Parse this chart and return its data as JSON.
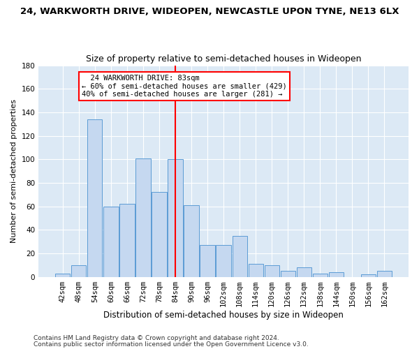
{
  "title": "24, WARKWORTH DRIVE, WIDEOPEN, NEWCASTLE UPON TYNE, NE13 6LX",
  "subtitle": "Size of property relative to semi-detached houses in Wideopen",
  "xlabel": "Distribution of semi-detached houses by size in Wideopen",
  "ylabel": "Number of semi-detached properties",
  "footer1": "Contains HM Land Registry data © Crown copyright and database right 2024.",
  "footer2": "Contains public sector information licensed under the Open Government Licence v3.0.",
  "bins": [
    "42sqm",
    "48sqm",
    "54sqm",
    "60sqm",
    "66sqm",
    "72sqm",
    "78sqm",
    "84sqm",
    "90sqm",
    "96sqm",
    "102sqm",
    "108sqm",
    "114sqm",
    "120sqm",
    "126sqm",
    "132sqm",
    "138sqm",
    "144sqm",
    "150sqm",
    "156sqm",
    "162sqm"
  ],
  "values": [
    3,
    10,
    134,
    60,
    62,
    101,
    72,
    100,
    61,
    27,
    27,
    35,
    11,
    10,
    5,
    8,
    3,
    4,
    0,
    2,
    5
  ],
  "bar_color": "#c5d8f0",
  "bar_edge_color": "#5b9bd5",
  "vline_color": "red",
  "vline_index": 7.0,
  "annotation_line1": "  24 WARKWORTH DRIVE: 83sqm",
  "annotation_line2": "← 60% of semi-detached houses are smaller (429)",
  "annotation_line3": "40% of semi-detached houses are larger (281) →",
  "annotation_box_color": "white",
  "annotation_box_edge": "red",
  "ylim": [
    0,
    180
  ],
  "bg_color": "#dce9f5",
  "title_fontsize": 9.5,
  "subtitle_fontsize": 9,
  "xlabel_fontsize": 8.5,
  "ylabel_fontsize": 8,
  "tick_fontsize": 7.5,
  "footer_fontsize": 6.5
}
